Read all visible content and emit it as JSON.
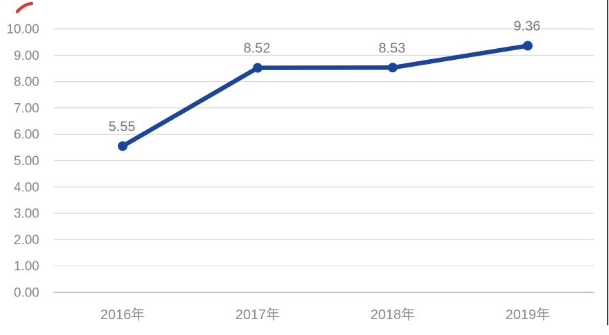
{
  "page": {
    "background": "#ffffff"
  },
  "decorations": {
    "red_stroke_color": "#d63a2c",
    "right_edge_line_color": "#3c3c3c"
  },
  "chart_data": {
    "type": "line",
    "title": "",
    "xlabel": "",
    "ylabel": "",
    "categories": [
      "2016年",
      "2017年",
      "2018年",
      "2019年"
    ],
    "series": [
      {
        "name": "",
        "values": [
          5.55,
          8.52,
          8.53,
          9.36
        ]
      }
    ],
    "data_labels": [
      "5.55",
      "8.52",
      "8.53",
      "9.36"
    ],
    "ylim": [
      0,
      10
    ],
    "y_tick_step": 1,
    "y_tick_labels": [
      "0.00",
      "1.00",
      "2.00",
      "3.00",
      "4.00",
      "5.00",
      "6.00",
      "7.00",
      "8.00",
      "9.00",
      "10.00"
    ],
    "grid": true,
    "legend": "none",
    "line_color": "#1b4596",
    "marker": "circle",
    "gridline_color": "#d9d9d9",
    "axis_line_color": "#ababab",
    "tick_label_color": "#878787",
    "data_label_color": "#757575"
  }
}
